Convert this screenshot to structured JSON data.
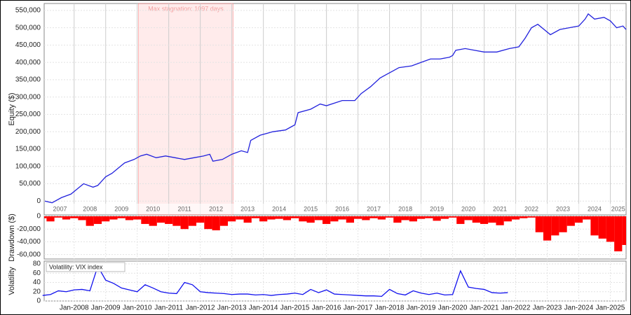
{
  "chart_data": [
    {
      "type": "line",
      "ylabel": "Equity ($)",
      "xlim": [
        2007.05,
        2025.5
      ],
      "ylim": [
        -40000,
        570000
      ],
      "yticks": [
        0,
        {
          "value": 50000,
          "label": "50,000"
        },
        {
          "value": 100000,
          "label": "100,000"
        },
        {
          "value": 150000,
          "label": "150,000"
        },
        {
          "value": 200000,
          "label": "200,000"
        },
        {
          "value": 250000,
          "label": "250,000"
        },
        {
          "value": 300000,
          "label": "300,000"
        },
        {
          "value": 350000,
          "label": "350,000"
        },
        {
          "value": 400000,
          "label": "400,000"
        },
        {
          "value": 450000,
          "label": "450,000"
        },
        {
          "value": 500000,
          "label": "500,000"
        },
        {
          "value": 550000,
          "label": "550,000"
        }
      ],
      "year_labels": [
        {
          "value": 2007.55,
          "label": "2007"
        },
        {
          "value": 2008.5,
          "label": "2008"
        },
        {
          "value": 2009.5,
          "label": "2009"
        },
        {
          "value": 2010.5,
          "label": "2010"
        },
        {
          "value": 2011.5,
          "label": "2011"
        },
        {
          "value": 2012.5,
          "label": "2012"
        },
        {
          "value": 2013.5,
          "label": "2013"
        },
        {
          "value": 2014.5,
          "label": "2014"
        },
        {
          "value": 2015.5,
          "label": "2015"
        },
        {
          "value": 2016.5,
          "label": "2016"
        },
        {
          "value": 2017.5,
          "label": "2017"
        },
        {
          "value": 2018.5,
          "label": "2018"
        },
        {
          "value": 2019.5,
          "label": "2019"
        },
        {
          "value": 2020.5,
          "label": "2020"
        },
        {
          "value": 2021.5,
          "label": "2021"
        },
        {
          "value": 2022.5,
          "label": "2022"
        },
        {
          "value": 2023.5,
          "label": "2023"
        },
        {
          "value": 2024.5,
          "label": "2024"
        },
        {
          "value": 2025.25,
          "label": "2025"
        }
      ],
      "stagnation": {
        "label": "Max stagnation: 1097 days",
        "x": [
          2010.04,
          2013.04
        ]
      },
      "x": [
        2007.07,
        2007.3,
        2007.6,
        2007.9,
        2008.1,
        2008.3,
        2008.6,
        2008.75,
        2009.0,
        2009.2,
        2009.4,
        2009.6,
        2009.9,
        2010.1,
        2010.3,
        2010.6,
        2010.9,
        2011.2,
        2011.5,
        2011.8,
        2012.1,
        2012.3,
        2012.4,
        2012.7,
        2013.0,
        2013.3,
        2013.5,
        2013.6,
        2013.9,
        2014.3,
        2014.7,
        2014.9,
        2015.0,
        2015.1,
        2015.5,
        2015.8,
        2016.0,
        2016.5,
        2016.9,
        2017.1,
        2017.4,
        2017.7,
        2017.9,
        2018.1,
        2018.3,
        2018.7,
        2019.0,
        2019.3,
        2019.6,
        2019.9,
        2020.0,
        2020.1,
        2020.4,
        2020.7,
        2021.0,
        2021.4,
        2021.8,
        2022.1,
        2022.3,
        2022.5,
        2022.7,
        2022.9,
        2023.1,
        2023.4,
        2023.7,
        2024.0,
        2024.2,
        2024.3,
        2024.5,
        2024.8,
        2025.0,
        2025.2,
        2025.4,
        2025.5
      ],
      "series": [
        {
          "name": "Equity",
          "color": "#2222dd",
          "values": [
            0,
            -5000,
            10000,
            20000,
            35000,
            50000,
            40000,
            45000,
            70000,
            80000,
            95000,
            110000,
            120000,
            130000,
            135000,
            125000,
            130000,
            125000,
            120000,
            125000,
            130000,
            135000,
            115000,
            120000,
            135000,
            145000,
            140000,
            175000,
            190000,
            200000,
            205000,
            215000,
            220000,
            255000,
            265000,
            280000,
            275000,
            290000,
            290000,
            310000,
            330000,
            355000,
            365000,
            375000,
            385000,
            390000,
            400000,
            410000,
            410000,
            415000,
            420000,
            435000,
            440000,
            435000,
            430000,
            430000,
            440000,
            445000,
            470000,
            500000,
            510000,
            495000,
            480000,
            495000,
            500000,
            505000,
            525000,
            540000,
            525000,
            530000,
            520000,
            500000,
            505000,
            495000
          ]
        }
      ]
    },
    {
      "type": "bar",
      "ylabel": "Drawdown ($)",
      "xlim": [
        2007.05,
        2025.5
      ],
      "ylim": [
        -67000,
        0
      ],
      "yticks": [
        0,
        {
          "value": -20000,
          "label": "-20,000"
        },
        {
          "value": -40000,
          "label": "-40,000"
        },
        {
          "value": -60000,
          "label": "-60,000"
        }
      ],
      "x": [
        2007.0,
        2007.25,
        2007.5,
        2007.75,
        2008.0,
        2008.25,
        2008.5,
        2008.75,
        2009.0,
        2009.25,
        2009.5,
        2009.75,
        2010.0,
        2010.25,
        2010.5,
        2010.75,
        2011.0,
        2011.25,
        2011.5,
        2011.75,
        2012.0,
        2012.25,
        2012.5,
        2012.75,
        2013.0,
        2013.25,
        2013.5,
        2013.75,
        2014.0,
        2014.25,
        2014.5,
        2014.75,
        2015.0,
        2015.25,
        2015.5,
        2015.75,
        2016.0,
        2016.25,
        2016.5,
        2016.75,
        2017.0,
        2017.25,
        2017.5,
        2017.75,
        2018.0,
        2018.25,
        2018.5,
        2018.75,
        2019.0,
        2019.25,
        2019.5,
        2019.75,
        2020.0,
        2020.25,
        2020.5,
        2020.75,
        2021.0,
        2021.25,
        2021.5,
        2021.75,
        2022.0,
        2022.25,
        2022.5,
        2022.75,
        2023.0,
        2023.25,
        2023.5,
        2023.75,
        2024.0,
        2024.25,
        2024.5,
        2024.75,
        2025.0,
        2025.25,
        2025.5
      ],
      "series": [
        {
          "name": "Drawdown",
          "color": "#ff0000",
          "values": [
            -3000,
            -8000,
            -2000,
            -5000,
            -3000,
            -6000,
            -15000,
            -12000,
            -8000,
            -5000,
            -3000,
            -6000,
            -5000,
            -12000,
            -15000,
            -10000,
            -12000,
            -15000,
            -20000,
            -15000,
            -10000,
            -20000,
            -22000,
            -15000,
            -8000,
            -5000,
            -10000,
            -3000,
            -8000,
            -5000,
            -4000,
            -6000,
            -3000,
            -8000,
            -10000,
            -6000,
            -12000,
            -8000,
            -5000,
            -10000,
            -4000,
            -6000,
            -3000,
            -5000,
            -2000,
            -10000,
            -6000,
            -8000,
            -4000,
            -3000,
            -7000,
            -4000,
            -2000,
            -12000,
            -6000,
            -10000,
            -12000,
            -10000,
            -14000,
            -8000,
            -5000,
            -3000,
            -2000,
            -25000,
            -38000,
            -30000,
            -25000,
            -15000,
            -10000,
            -5000,
            -30000,
            -35000,
            -40000,
            -55000,
            -45000
          ]
        }
      ]
    },
    {
      "type": "line",
      "ylabel": "Volatility",
      "xlim": [
        2007.05,
        2025.5
      ],
      "ylim": [
        0,
        86
      ],
      "yticks": [
        0,
        20,
        40,
        60,
        80
      ],
      "xticks": [
        {
          "value": 2008,
          "label": "Jan-2008"
        },
        {
          "value": 2009,
          "label": "Jan-2009"
        },
        {
          "value": 2010,
          "label": "Jan-2010"
        },
        {
          "value": 2011,
          "label": "Jan-2011"
        },
        {
          "value": 2012,
          "label": "Jan-2012"
        },
        {
          "value": 2013,
          "label": "Jan-2013"
        },
        {
          "value": 2014,
          "label": "Jan-2014"
        },
        {
          "value": 2015,
          "label": "Jan-2015"
        },
        {
          "value": 2016,
          "label": "Jan-2016"
        },
        {
          "value": 2017,
          "label": "Jan-2017"
        },
        {
          "value": 2018,
          "label": "Jan-2018"
        },
        {
          "value": 2019,
          "label": "Jan-2019"
        },
        {
          "value": 2020,
          "label": "Jan-2020"
        },
        {
          "value": 2021,
          "label": "Jan-2021"
        },
        {
          "value": 2022,
          "label": "Jan-2022"
        },
        {
          "value": 2023,
          "label": "Jan-2023"
        },
        {
          "value": 2024,
          "label": "Jan-2024"
        },
        {
          "value": 2025,
          "label": "Jan-2025"
        }
      ],
      "x": [
        2007.0,
        2007.25,
        2007.5,
        2007.75,
        2008.0,
        2008.25,
        2008.5,
        2008.75,
        2009.0,
        2009.25,
        2009.5,
        2009.75,
        2010.0,
        2010.25,
        2010.5,
        2010.75,
        2011.0,
        2011.25,
        2011.5,
        2011.75,
        2012.0,
        2012.25,
        2012.5,
        2012.75,
        2013.0,
        2013.25,
        2013.5,
        2013.75,
        2014.0,
        2014.25,
        2014.5,
        2014.75,
        2015.0,
        2015.25,
        2015.5,
        2015.75,
        2016.0,
        2016.25,
        2016.5,
        2016.75,
        2017.0,
        2017.25,
        2017.5,
        2017.75,
        2018.0,
        2018.25,
        2018.5,
        2018.75,
        2019.0,
        2019.25,
        2019.5,
        2019.75,
        2020.0,
        2020.25,
        2020.5,
        2020.75,
        2021.0,
        2021.25,
        2021.5,
        2021.75
      ],
      "series": [
        {
          "name": "Volatility: VIX index",
          "color": "#1111ee",
          "values": [
            12,
            14,
            22,
            20,
            24,
            25,
            22,
            75,
            45,
            38,
            28,
            24,
            20,
            35,
            28,
            20,
            17,
            16,
            40,
            35,
            20,
            18,
            17,
            16,
            14,
            15,
            15,
            13,
            14,
            12,
            14,
            15,
            17,
            14,
            25,
            18,
            24,
            15,
            14,
            13,
            12,
            11,
            11,
            10,
            25,
            16,
            13,
            22,
            17,
            14,
            17,
            13,
            14,
            65,
            30,
            27,
            25,
            18,
            17,
            18
          ]
        }
      ]
    }
  ]
}
